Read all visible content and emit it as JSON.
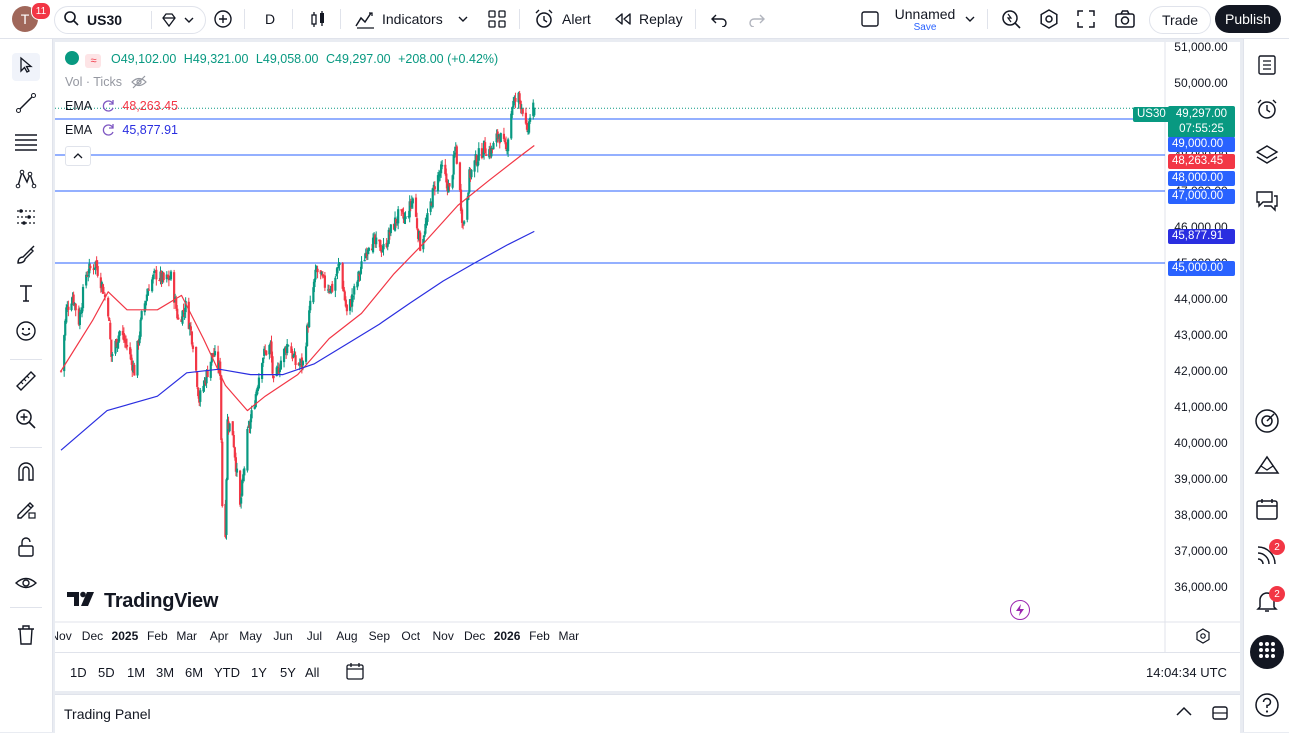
{
  "header": {
    "avatar_letter": "T",
    "notifications": "11",
    "symbol": "US30",
    "interval": "D",
    "indicators_label": "Indicators",
    "alert_label": "Alert",
    "replay_label": "Replay",
    "layout_name": "Unnamed",
    "layout_save": "Save",
    "trade_label": "Trade",
    "publish_label": "Publish"
  },
  "legend": {
    "open": "O49,102.00",
    "high": "H49,321.00",
    "low": "L49,058.00",
    "close": "C49,297.00",
    "change": "+208.00 (+0.42%)",
    "vol_label": "Vol · Ticks",
    "ema1_label": "EMA",
    "ema1_value": "48,263.45",
    "ema2_label": "EMA",
    "ema2_value": "45,877.91"
  },
  "price_labels": {
    "symbol_tag": "US30",
    "last": "49,297.00",
    "countdown": "07:55:25",
    "level_49000": "49,000.00",
    "ema_fast": "48,263.45",
    "level_48000": "48,000.00",
    "level_47000": "47,000.00",
    "ema_slow": "45,877.91",
    "level_45000": "45,000.00"
  },
  "watermark": "TradingView",
  "ranges": [
    "1D",
    "5D",
    "1M",
    "3M",
    "6M",
    "YTD",
    "1Y",
    "5Y",
    "All"
  ],
  "clock": "14:04:34 UTC",
  "panel_title": "Trading Panel",
  "right_badges": {
    "ideas": "2",
    "alerts": "2"
  },
  "colors": {
    "up": "#089981",
    "down": "#f23645",
    "ema_fast": "#f23645",
    "ema_slow": "#2a2ee0",
    "hline": "#2962ff",
    "last_price": "#089981",
    "brand": "#131722"
  },
  "chart_data": {
    "type": "candlestick",
    "symbol": "US30",
    "interval": "D",
    "ylim": [
      36000,
      51000
    ],
    "y_ticks": [
      "36,000.00",
      "37,000.00",
      "38,000.00",
      "39,000.00",
      "40,000.00",
      "41,000.00",
      "42,000.00",
      "43,000.00",
      "44,000.00",
      "45,000.00",
      "46,000.00",
      "47,000.00",
      "48,000.00",
      "49,000.00",
      "50,000.00",
      "51,000.00"
    ],
    "x_ticks": [
      "Nov",
      "Dec",
      "2025",
      "Feb",
      "Mar",
      "Apr",
      "May",
      "Jun",
      "Jul",
      "Aug",
      "Sep",
      "Oct",
      "Nov",
      "Dec",
      "2026",
      "Feb",
      "Mar"
    ],
    "close_path": [
      {
        "date": "2024-11-01",
        "value": 42000
      },
      {
        "date": "2024-11-06",
        "value": 43700
      },
      {
        "date": "2024-11-12",
        "value": 44100
      },
      {
        "date": "2024-11-18",
        "value": 43400
      },
      {
        "date": "2024-11-25",
        "value": 44700
      },
      {
        "date": "2024-12-04",
        "value": 45000
      },
      {
        "date": "2024-12-10",
        "value": 44400
      },
      {
        "date": "2024-12-16",
        "value": 43700
      },
      {
        "date": "2024-12-19",
        "value": 42400
      },
      {
        "date": "2024-12-27",
        "value": 43100
      },
      {
        "date": "2025-01-03",
        "value": 42700
      },
      {
        "date": "2025-01-10",
        "value": 42000
      },
      {
        "date": "2025-01-17",
        "value": 43500
      },
      {
        "date": "2025-01-24",
        "value": 44400
      },
      {
        "date": "2025-01-31",
        "value": 44700
      },
      {
        "date": "2025-02-07",
        "value": 44500
      },
      {
        "date": "2025-02-14",
        "value": 44600
      },
      {
        "date": "2025-02-21",
        "value": 43400
      },
      {
        "date": "2025-02-28",
        "value": 43800
      },
      {
        "date": "2025-03-07",
        "value": 42800
      },
      {
        "date": "2025-03-13",
        "value": 41200
      },
      {
        "date": "2025-03-20",
        "value": 41900
      },
      {
        "date": "2025-03-26",
        "value": 42500
      },
      {
        "date": "2025-04-02",
        "value": 42000
      },
      {
        "date": "2025-04-04",
        "value": 38300
      },
      {
        "date": "2025-04-07",
        "value": 37600
      },
      {
        "date": "2025-04-09",
        "value": 40600
      },
      {
        "date": "2025-04-14",
        "value": 40300
      },
      {
        "date": "2025-04-21",
        "value": 38200
      },
      {
        "date": "2025-04-28",
        "value": 40200
      },
      {
        "date": "2025-05-05",
        "value": 41200
      },
      {
        "date": "2025-05-12",
        "value": 42400
      },
      {
        "date": "2025-05-20",
        "value": 42700
      },
      {
        "date": "2025-05-23",
        "value": 41600
      },
      {
        "date": "2025-05-30",
        "value": 42300
      },
      {
        "date": "2025-06-06",
        "value": 42800
      },
      {
        "date": "2025-06-13",
        "value": 42200
      },
      {
        "date": "2025-06-20",
        "value": 42200
      },
      {
        "date": "2025-06-27",
        "value": 43800
      },
      {
        "date": "2025-07-03",
        "value": 44800
      },
      {
        "date": "2025-07-11",
        "value": 44400
      },
      {
        "date": "2025-07-18",
        "value": 44300
      },
      {
        "date": "2025-07-25",
        "value": 45000
      },
      {
        "date": "2025-08-01",
        "value": 43600
      },
      {
        "date": "2025-08-08",
        "value": 44200
      },
      {
        "date": "2025-08-15",
        "value": 44900
      },
      {
        "date": "2025-08-22",
        "value": 45600
      },
      {
        "date": "2025-08-29",
        "value": 45500
      },
      {
        "date": "2025-09-05",
        "value": 45400
      },
      {
        "date": "2025-09-12",
        "value": 45900
      },
      {
        "date": "2025-09-19",
        "value": 46300
      },
      {
        "date": "2025-09-26",
        "value": 46200
      },
      {
        "date": "2025-10-03",
        "value": 46800
      },
      {
        "date": "2025-10-10",
        "value": 45500
      },
      {
        "date": "2025-10-17",
        "value": 46200
      },
      {
        "date": "2025-10-24",
        "value": 47200
      },
      {
        "date": "2025-10-31",
        "value": 47600
      },
      {
        "date": "2025-11-07",
        "value": 47000
      },
      {
        "date": "2025-11-13",
        "value": 48200
      },
      {
        "date": "2025-11-20",
        "value": 46000
      },
      {
        "date": "2025-11-26",
        "value": 47400
      },
      {
        "date": "2025-12-03",
        "value": 47900
      },
      {
        "date": "2025-12-10",
        "value": 48200
      },
      {
        "date": "2025-12-17",
        "value": 48100
      },
      {
        "date": "2025-12-24",
        "value": 48600
      },
      {
        "date": "2025-12-31",
        "value": 48100
      },
      {
        "date": "2026-01-06",
        "value": 49400
      },
      {
        "date": "2026-01-12",
        "value": 49600
      },
      {
        "date": "2026-01-16",
        "value": 49300
      },
      {
        "date": "2026-01-20",
        "value": 48500
      },
      {
        "date": "2026-01-23",
        "value": 49100
      },
      {
        "date": "2026-01-27",
        "value": 49297
      }
    ],
    "ema_fast": [
      {
        "date": "2024-11-01",
        "value": 42000
      },
      {
        "date": "2024-12-01",
        "value": 43400
      },
      {
        "date": "2024-12-16",
        "value": 44200
      },
      {
        "date": "2025-01-03",
        "value": 43700
      },
      {
        "date": "2025-02-01",
        "value": 43700
      },
      {
        "date": "2025-02-24",
        "value": 44100
      },
      {
        "date": "2025-03-17",
        "value": 42900
      },
      {
        "date": "2025-04-07",
        "value": 41600
      },
      {
        "date": "2025-04-28",
        "value": 40900
      },
      {
        "date": "2025-05-15",
        "value": 41300
      },
      {
        "date": "2025-06-15",
        "value": 41900
      },
      {
        "date": "2025-07-15",
        "value": 42900
      },
      {
        "date": "2025-08-15",
        "value": 43600
      },
      {
        "date": "2025-09-15",
        "value": 44700
      },
      {
        "date": "2025-10-15",
        "value": 45600
      },
      {
        "date": "2025-11-15",
        "value": 46600
      },
      {
        "date": "2025-12-15",
        "value": 47300
      },
      {
        "date": "2026-01-15",
        "value": 48000
      },
      {
        "date": "2026-01-27",
        "value": 48263.45
      }
    ],
    "ema_slow": [
      {
        "date": "2024-11-01",
        "value": 39800
      },
      {
        "date": "2024-12-15",
        "value": 40900
      },
      {
        "date": "2025-02-01",
        "value": 41300
      },
      {
        "date": "2025-03-01",
        "value": 41950
      },
      {
        "date": "2025-04-01",
        "value": 42050
      },
      {
        "date": "2025-05-01",
        "value": 41900
      },
      {
        "date": "2025-06-01",
        "value": 41900
      },
      {
        "date": "2025-07-01",
        "value": 42200
      },
      {
        "date": "2025-08-01",
        "value": 42750
      },
      {
        "date": "2025-09-01",
        "value": 43300
      },
      {
        "date": "2025-10-01",
        "value": 43900
      },
      {
        "date": "2025-11-01",
        "value": 44500
      },
      {
        "date": "2025-12-01",
        "value": 45000
      },
      {
        "date": "2026-01-01",
        "value": 45500
      },
      {
        "date": "2026-01-27",
        "value": 45877.91
      }
    ],
    "horizontal_lines": [
      49000,
      48000,
      47000,
      45000
    ],
    "last_price": 49297.0,
    "ohlc": {
      "open": 49102.0,
      "high": 49321.0,
      "low": 49058.0,
      "close": 49297.0,
      "change": 208.0,
      "change_pct": 0.42
    }
  }
}
